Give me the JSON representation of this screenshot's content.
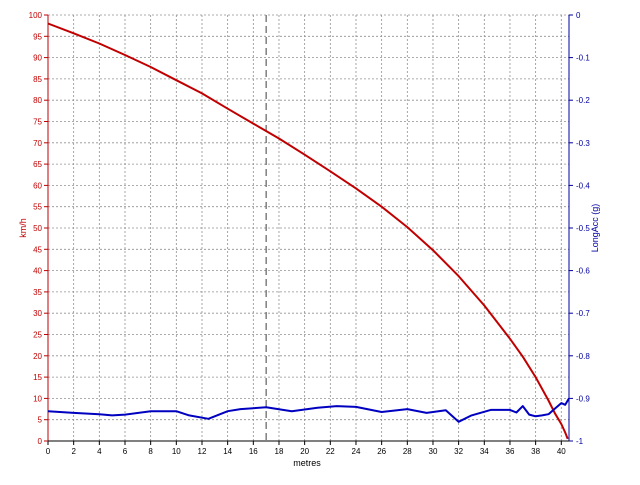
{
  "chart_data": {
    "type": "line",
    "xlabel": "metres",
    "ylabel_left": "km/h",
    "ylabel_right": "LongAcc (g)",
    "xlim": [
      0,
      40.6
    ],
    "ylim_left": [
      0,
      100
    ],
    "ylim_right": [
      -1,
      0
    ],
    "x_ticks": [
      0,
      2,
      4,
      6,
      8,
      10,
      12,
      14,
      16,
      18,
      20,
      22,
      24,
      26,
      28,
      30,
      32,
      34,
      36,
      38,
      40
    ],
    "y_left_ticks": [
      0,
      5,
      10,
      15,
      20,
      25,
      30,
      35,
      40,
      45,
      50,
      55,
      60,
      65,
      70,
      75,
      80,
      85,
      90,
      95,
      100
    ],
    "y_right_ticks": [
      0,
      -0.1,
      -0.2,
      -0.3,
      -0.4,
      -0.5,
      -0.6,
      -0.7,
      -0.8,
      -0.9,
      -1
    ],
    "grid": true,
    "cursor_x": 17,
    "colors": {
      "speed": "#c00000",
      "longacc": "#0000c0",
      "left_axis": "#c00000",
      "right_axis": "#0000a0",
      "grid": "#909090",
      "cursor": "#606060"
    },
    "series": [
      {
        "axis": "left",
        "x": [
          0,
          2,
          4,
          6,
          8,
          10,
          12,
          14,
          16,
          18,
          20,
          22,
          24,
          26,
          28,
          30,
          32,
          34,
          36,
          37,
          38,
          39,
          39.5,
          40,
          40.3,
          40.5
        ],
        "values": [
          98,
          95.7,
          93.3,
          90.6,
          87.8,
          84.7,
          81.6,
          78,
          74.5,
          71,
          67.2,
          63.3,
          59.3,
          55,
          50.2,
          44.8,
          38.7,
          31.8,
          24,
          19.8,
          15,
          9.5,
          6.5,
          4,
          2,
          0.5
        ]
      },
      {
        "axis": "right",
        "x": [
          0,
          2,
          4,
          5,
          6,
          8,
          10,
          11,
          12.5,
          14,
          15,
          17,
          19,
          21,
          22.5,
          24,
          26,
          28,
          29.5,
          31,
          32,
          33,
          34.5,
          36,
          36.5,
          37,
          37.5,
          38,
          38.5,
          39,
          39.5,
          40,
          40.3,
          40.6
        ],
        "values": [
          -0.93,
          -0.934,
          -0.937,
          -0.94,
          -0.938,
          -0.93,
          -0.93,
          -0.94,
          -0.948,
          -0.93,
          -0.925,
          -0.921,
          -0.93,
          -0.922,
          -0.918,
          -0.92,
          -0.932,
          -0.925,
          -0.934,
          -0.928,
          -0.955,
          -0.94,
          -0.927,
          -0.927,
          -0.933,
          -0.918,
          -0.938,
          -0.942,
          -0.94,
          -0.937,
          -0.924,
          -0.911,
          -0.915,
          -0.9
        ]
      }
    ]
  }
}
